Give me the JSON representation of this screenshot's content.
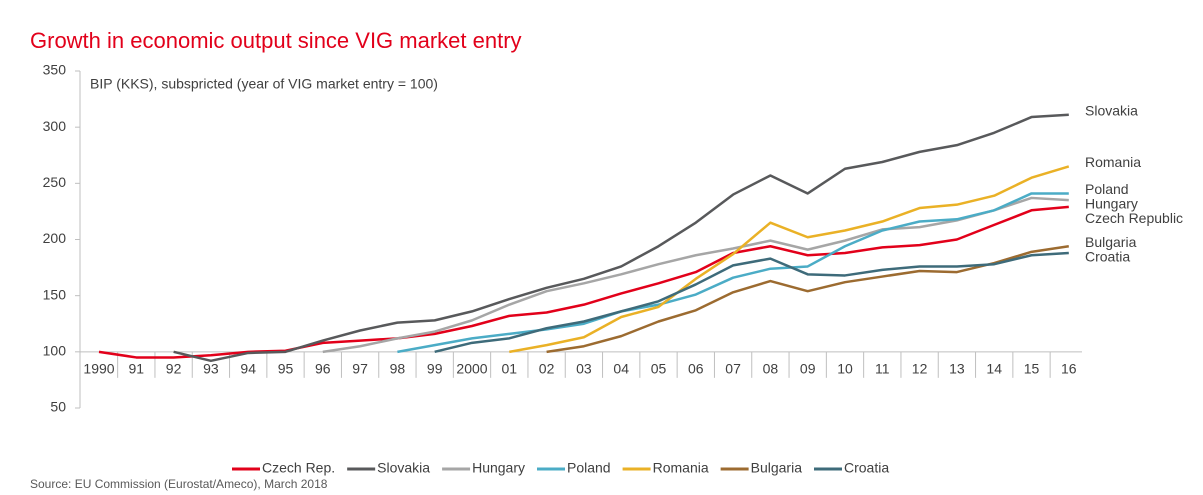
{
  "chart_data": {
    "type": "line",
    "title": "Growth in economic output since VIG market entry",
    "subtitle": "BIP (KKS), subspricted (year of VIG market entry = 100)",
    "source": "Source: EU Commission (Eurostat/Ameco), March 2018",
    "categories": [
      "1990",
      "91",
      "92",
      "93",
      "94",
      "95",
      "96",
      "97",
      "98",
      "99",
      "2000",
      "01",
      "02",
      "03",
      "04",
      "05",
      "06",
      "07",
      "08",
      "09",
      "10",
      "11",
      "12",
      "13",
      "14",
      "15",
      "16"
    ],
    "ylim": [
      50,
      350
    ],
    "yticks": [
      50,
      100,
      150,
      200,
      250,
      300,
      350
    ],
    "x_axis_at": 100,
    "grid": false,
    "legend": "bottom",
    "series": [
      {
        "name": "Czech Rep.",
        "end_label": "Czech Republic",
        "color": "#e2001a",
        "values": [
          100,
          95,
          95,
          97,
          100,
          101,
          108,
          110,
          112,
          116,
          123,
          132,
          135,
          142,
          152,
          161,
          171,
          188,
          194,
          186,
          188,
          193,
          195,
          200,
          213,
          226,
          229
        ]
      },
      {
        "name": "Slovakia",
        "end_label": "Slovakia",
        "color": "#58595b",
        "values": [
          null,
          null,
          100,
          92,
          99,
          100,
          110,
          119,
          126,
          128,
          136,
          147,
          157,
          165,
          176,
          194,
          215,
          240,
          257,
          241,
          263,
          269,
          278,
          284,
          295,
          309,
          311
        ]
      },
      {
        "name": "Hungary",
        "end_label": "Hungary",
        "color": "#a6a6a6",
        "values": [
          null,
          null,
          null,
          null,
          null,
          null,
          100,
          105,
          112,
          118,
          128,
          142,
          154,
          161,
          169,
          178,
          186,
          192,
          199,
          191,
          199,
          209,
          211,
          217,
          226,
          237,
          235
        ]
      },
      {
        "name": "Poland",
        "end_label": "Poland",
        "color": "#4bacc6",
        "values": [
          null,
          null,
          null,
          null,
          null,
          null,
          null,
          null,
          100,
          106,
          112,
          116,
          120,
          125,
          136,
          142,
          151,
          166,
          174,
          176,
          194,
          208,
          216,
          218,
          226,
          241,
          241
        ]
      },
      {
        "name": "Romania",
        "end_label": "Romania",
        "color": "#eab126",
        "values": [
          null,
          null,
          null,
          null,
          null,
          null,
          null,
          null,
          null,
          null,
          null,
          100,
          106,
          113,
          131,
          140,
          165,
          187,
          215,
          202,
          208,
          216,
          228,
          231,
          239,
          255,
          265
        ]
      },
      {
        "name": "Bulgaria",
        "end_label": "Bulgaria",
        "color": "#9c6b30",
        "values": [
          null,
          null,
          null,
          null,
          null,
          null,
          null,
          null,
          null,
          null,
          null,
          null,
          100,
          105,
          114,
          127,
          137,
          153,
          163,
          154,
          162,
          167,
          172,
          171,
          179,
          189,
          194
        ]
      },
      {
        "name": "Croatia",
        "end_label": "Croatia",
        "color": "#3e6b7a",
        "values": [
          null,
          null,
          null,
          null,
          null,
          null,
          null,
          null,
          null,
          100,
          108,
          112,
          121,
          127,
          136,
          145,
          160,
          177,
          183,
          169,
          168,
          173,
          176,
          176,
          178,
          186,
          188
        ]
      }
    ]
  }
}
